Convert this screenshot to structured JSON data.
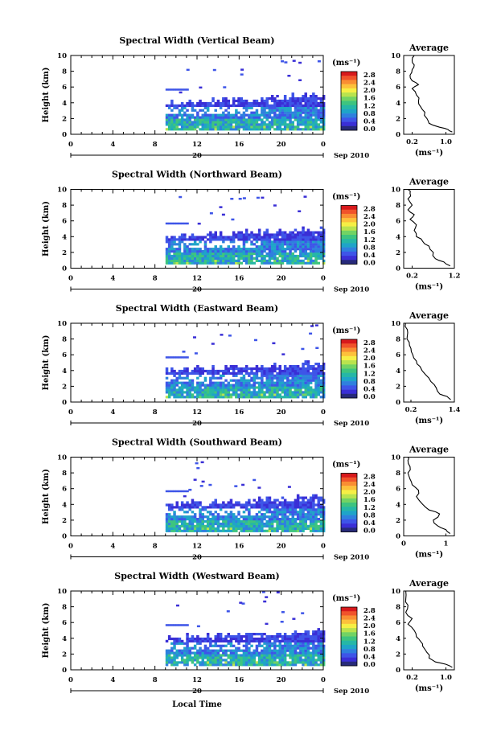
{
  "figure": {
    "bottom_label": "Local Time",
    "day_label": "20",
    "month_label": "Sep 2010",
    "ylabel": "Height (km)",
    "unit_label": "(ms⁻¹)",
    "avg_title": "Average",
    "avg_xlabel": "(ms⁻¹)"
  },
  "colorbar": {
    "ticks": [
      "2.8",
      "2.4",
      "2.0",
      "1.6",
      "1.2",
      "0.8",
      "0.4",
      "0.0"
    ],
    "colors": [
      "#d7191c",
      "#f0532b",
      "#f98e33",
      "#fdc13b",
      "#f6ef45",
      "#b9e34e",
      "#72d364",
      "#3ec47f",
      "#26b7a6",
      "#1fa4c8",
      "#2f80de",
      "#3e55e8",
      "#3a2fd6",
      "#272a7a"
    ]
  },
  "chart_data": [
    {
      "type": "heatmap",
      "title": "Spectral Width (Vertical Beam)",
      "x_ticks": [
        "0",
        "4",
        "8",
        "12",
        "16",
        "20",
        "0"
      ],
      "xlim": [
        0,
        24
      ],
      "ylim": [
        0,
        10
      ],
      "y_ticks": [
        "0",
        "2",
        "4",
        "6",
        "8",
        "10"
      ],
      "echo_layer_km": [
        0.5,
        4.5
      ],
      "echo_start_hour": 9,
      "avg": {
        "xlim": [
          0,
          1.2
        ],
        "x_ticks": [
          {
            "v": 0.2,
            "t": "0.2"
          },
          {
            "v": 1.0,
            "t": "1.0"
          }
        ],
        "profile": [
          [
            1.15,
            0.3
          ],
          [
            1.05,
            0.6
          ],
          [
            0.85,
            0.9
          ],
          [
            0.6,
            1.4
          ],
          [
            0.55,
            2.0
          ],
          [
            0.5,
            2.8
          ],
          [
            0.4,
            3.5
          ],
          [
            0.35,
            4.2
          ],
          [
            0.3,
            5.0
          ],
          [
            0.2,
            5.8
          ],
          [
            0.35,
            6.3
          ],
          [
            0.2,
            6.8
          ],
          [
            0.15,
            7.5
          ],
          [
            0.2,
            8.2
          ],
          [
            0.25,
            8.8
          ],
          [
            0.2,
            9.4
          ],
          [
            0.25,
            10.0
          ]
        ]
      }
    },
    {
      "type": "heatmap",
      "title": "Spectral Width (Northward Beam)",
      "x_ticks": [
        "0",
        "4",
        "8",
        "12",
        "16",
        "20",
        "0"
      ],
      "xlim": [
        0,
        24
      ],
      "ylim": [
        0,
        10
      ],
      "y_ticks": [
        "0",
        "2",
        "4",
        "6",
        "8",
        "10"
      ],
      "echo_layer_km": [
        0.5,
        4.5
      ],
      "echo_start_hour": 9,
      "avg": {
        "xlim": [
          0,
          1.2
        ],
        "x_ticks": [
          {
            "v": 0.2,
            "t": "0.2"
          },
          {
            "v": 1.2,
            "t": "1.2"
          }
        ],
        "profile": [
          [
            1.1,
            0.3
          ],
          [
            0.95,
            0.8
          ],
          [
            0.75,
            1.2
          ],
          [
            0.7,
            2.0
          ],
          [
            0.6,
            2.8
          ],
          [
            0.45,
            3.4
          ],
          [
            0.3,
            4.0
          ],
          [
            0.25,
            4.8
          ],
          [
            0.3,
            5.5
          ],
          [
            0.15,
            6.2
          ],
          [
            0.25,
            6.8
          ],
          [
            0.1,
            7.4
          ],
          [
            0.2,
            8.0
          ],
          [
            0.1,
            8.8
          ],
          [
            0.15,
            9.5
          ],
          [
            0.1,
            10.0
          ]
        ]
      }
    },
    {
      "type": "heatmap",
      "title": "Spectral Width (Eastward Beam)",
      "x_ticks": [
        "0",
        "4",
        "8",
        "12",
        "16",
        "20",
        "0"
      ],
      "xlim": [
        0,
        24
      ],
      "ylim": [
        0,
        10
      ],
      "y_ticks": [
        "0",
        "2",
        "4",
        "6",
        "8",
        "10"
      ],
      "echo_layer_km": [
        0.5,
        4.5
      ],
      "echo_start_hour": 9,
      "avg": {
        "xlim": [
          0,
          1.4
        ],
        "x_ticks": [
          {
            "v": 0.2,
            "t": "0.2"
          },
          {
            "v": 1.4,
            "t": "1.4"
          }
        ],
        "profile": [
          [
            1.3,
            0.3
          ],
          [
            1.2,
            0.7
          ],
          [
            1.0,
            1.0
          ],
          [
            0.9,
            1.8
          ],
          [
            0.75,
            2.6
          ],
          [
            0.6,
            3.5
          ],
          [
            0.45,
            4.5
          ],
          [
            0.35,
            5.2
          ],
          [
            0.25,
            6.0
          ],
          [
            0.2,
            6.8
          ],
          [
            0.15,
            7.6
          ],
          [
            0.1,
            8.4
          ],
          [
            0.1,
            9.2
          ],
          [
            0.05,
            10.0
          ]
        ]
      }
    },
    {
      "type": "heatmap",
      "title": "Spectral Width (Southward Beam)",
      "x_ticks": [
        "0",
        "4",
        "8",
        "12",
        "16",
        "20",
        "0"
      ],
      "xlim": [
        0,
        24
      ],
      "ylim": [
        0,
        10
      ],
      "y_ticks": [
        "0",
        "2",
        "4",
        "6",
        "8",
        "10"
      ],
      "echo_layer_km": [
        0.5,
        4.5
      ],
      "echo_start_hour": 9,
      "avg": {
        "xlim": [
          0,
          1.2
        ],
        "x_ticks": [
          {
            "v": 0,
            "t": "0"
          },
          {
            "v": 1,
            "t": "1"
          }
        ],
        "profile": [
          [
            1.1,
            0.3
          ],
          [
            1.0,
            0.8
          ],
          [
            0.8,
            1.3
          ],
          [
            0.7,
            2.0
          ],
          [
            0.85,
            2.8
          ],
          [
            0.6,
            3.3
          ],
          [
            0.45,
            4.0
          ],
          [
            0.3,
            5.0
          ],
          [
            0.35,
            5.8
          ],
          [
            0.2,
            6.5
          ],
          [
            0.15,
            7.2
          ],
          [
            0.1,
            8.0
          ],
          [
            0.15,
            8.8
          ],
          [
            0.1,
            9.6
          ],
          [
            0.1,
            10.0
          ]
        ]
      }
    },
    {
      "type": "heatmap",
      "title": "Spectral Width (Westward Beam)",
      "x_ticks": [
        "0",
        "4",
        "8",
        "12",
        "16",
        "20",
        "0"
      ],
      "xlim": [
        0,
        24
      ],
      "ylim": [
        0,
        10
      ],
      "y_ticks": [
        "0",
        "2",
        "4",
        "6",
        "8",
        "10"
      ],
      "echo_layer_km": [
        0.5,
        4.5
      ],
      "echo_start_hour": 9,
      "avg": {
        "xlim": [
          0,
          1.2
        ],
        "x_ticks": [
          {
            "v": 0.2,
            "t": "0.2"
          },
          {
            "v": 1.0,
            "t": "1.0"
          }
        ],
        "profile": [
          [
            1.15,
            0.3
          ],
          [
            1.0,
            0.7
          ],
          [
            0.75,
            1.0
          ],
          [
            0.6,
            1.5
          ],
          [
            0.55,
            2.2
          ],
          [
            0.45,
            3.0
          ],
          [
            0.4,
            3.6
          ],
          [
            0.3,
            4.2
          ],
          [
            0.25,
            5.0
          ],
          [
            0.1,
            5.8
          ],
          [
            0.2,
            6.5
          ],
          [
            0.05,
            7.3
          ],
          [
            0.1,
            8.2
          ],
          [
            0.05,
            9.0
          ],
          [
            0.05,
            10.0
          ]
        ]
      }
    }
  ]
}
